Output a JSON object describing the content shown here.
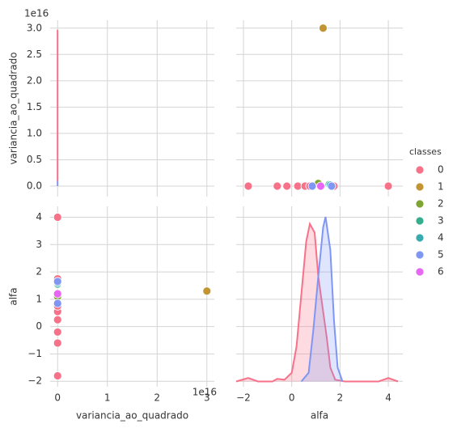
{
  "chart_data": [
    {
      "type": "line",
      "ylabel": "variancia_ao_quadrado",
      "y_offset": "1e16",
      "xlim": [
        -0.15,
        3.15
      ],
      "xticks": [
        0,
        1,
        2,
        3
      ],
      "ylim": [
        -0.2,
        3.15
      ],
      "yticks": [
        {
          "value": 0,
          "label": "0.0"
        },
        0.5,
        {
          "value": 1,
          "label": "1.0"
        },
        1.5,
        {
          "value": 2,
          "label": "2.0"
        },
        2.5,
        {
          "value": 3,
          "label": "3.0"
        }
      ],
      "grid": true,
      "series": [
        {
          "name": "0",
          "color": "#f77189",
          "x": [
            0,
            0
          ],
          "values": [
            0.1,
            2.97
          ]
        },
        {
          "name": "5",
          "color": "#7f96f4",
          "x": [
            0,
            0
          ],
          "values": [
            0,
            0.1
          ]
        }
      ]
    },
    {
      "type": "scatter",
      "legend_title": "classes",
      "legend": "right",
      "xlim": [
        -2.3,
        4.6
      ],
      "xticks": [
        {
          "value": -2,
          "label": "−2"
        },
        0,
        2,
        4
      ],
      "ylim": [
        -0.2,
        3.15
      ],
      "yticks": [
        {
          "value": 0,
          "label": "0.0"
        },
        0.5,
        {
          "value": 1,
          "label": "1.0"
        },
        1.5,
        {
          "value": 2,
          "label": "2.0"
        },
        2.5,
        {
          "value": 3,
          "label": "3.0"
        }
      ],
      "grid": true,
      "series": [
        {
          "name": "0",
          "color": "#f77189",
          "x": [
            -1.8,
            -0.6,
            -0.2,
            0.25,
            0.55,
            0.75,
            1.75,
            4.0
          ],
          "values": [
            0,
            0,
            0,
            0,
            0,
            0,
            0,
            0
          ]
        },
        {
          "name": "1",
          "color": "#c39532",
          "x": [
            1.3
          ],
          "values": [
            3.0
          ]
        },
        {
          "name": "2",
          "color": "#7ea532",
          "x": [
            1.1
          ],
          "values": [
            0.05
          ]
        },
        {
          "name": "3",
          "color": "#35ae8b",
          "x": [
            1.55
          ],
          "values": [
            0.03
          ]
        },
        {
          "name": "4",
          "color": "#37abb0",
          "x": [
            1.6
          ],
          "values": [
            0.02
          ]
        },
        {
          "name": "5",
          "color": "#7f96f4",
          "x": [
            0.85,
            1.65
          ],
          "values": [
            0,
            0
          ]
        },
        {
          "name": "6",
          "color": "#e866f4",
          "x": [
            1.2
          ],
          "values": [
            0
          ]
        }
      ]
    },
    {
      "type": "scatter",
      "xlabel": "variancia_ao_quadrado",
      "ylabel": "alfa",
      "x_offset": "1e16",
      "xlim": [
        -0.15,
        3.15
      ],
      "xticks": [
        0,
        1,
        2,
        3
      ],
      "ylim": [
        -2.2,
        4.4
      ],
      "yticks": [
        {
          "value": -2,
          "label": "−2"
        },
        {
          "value": -1,
          "label": "−1"
        },
        0,
        1,
        2,
        3,
        4
      ],
      "grid": true,
      "series": [
        {
          "name": "0",
          "color": "#f77189",
          "x": [
            0,
            0,
            0,
            0,
            0,
            0,
            0,
            0
          ],
          "values": [
            -1.8,
            -0.6,
            -0.2,
            0.25,
            0.55,
            0.75,
            1.75,
            4.0
          ]
        },
        {
          "name": "1",
          "color": "#c39532",
          "x": [
            3.0
          ],
          "values": [
            1.3
          ]
        },
        {
          "name": "2",
          "color": "#7ea532",
          "x": [
            0
          ],
          "values": [
            1.1
          ]
        },
        {
          "name": "3",
          "color": "#35ae8b",
          "x": [
            0
          ],
          "values": [
            1.55
          ]
        },
        {
          "name": "4",
          "color": "#37abb0",
          "x": [
            0
          ],
          "values": [
            1.6
          ]
        },
        {
          "name": "5",
          "color": "#7f96f4",
          "x": [
            0,
            0
          ],
          "values": [
            0.85,
            1.65
          ]
        },
        {
          "name": "6",
          "color": "#e866f4",
          "x": [
            0
          ],
          "values": [
            1.2
          ]
        }
      ]
    },
    {
      "type": "kde",
      "xlabel": "alfa",
      "xlim": [
        -2.3,
        4.6
      ],
      "xticks": [
        {
          "value": -2,
          "label": "−2"
        },
        0,
        2,
        4
      ],
      "ylim": [
        -2.2,
        4.4
      ],
      "yticks": [
        {
          "value": -2,
          "label": "−2"
        },
        {
          "value": -1,
          "label": "−1"
        },
        0,
        1,
        2,
        3,
        4
      ],
      "density_lim": [
        -0.03,
        1.0
      ],
      "grid": true,
      "series": [
        {
          "name": "0",
          "color": "#f77189",
          "x": [
            -2.3,
            -1.8,
            -1.4,
            -0.8,
            -0.6,
            -0.3,
            0,
            0.2,
            0.4,
            0.6,
            0.75,
            0.95,
            1.1,
            1.25,
            1.45,
            1.6,
            1.8,
            2.2,
            3.6,
            4.0,
            4.4
          ],
          "values": [
            0,
            0.02,
            0,
            0,
            0.015,
            0.01,
            0.05,
            0.2,
            0.5,
            0.8,
            0.9,
            0.85,
            0.6,
            0.45,
            0.25,
            0.08,
            0.01,
            0,
            0,
            0.02,
            0
          ]
        },
        {
          "name": "5",
          "color": "#7f96f4",
          "x": [
            0.4,
            0.7,
            0.9,
            1.1,
            1.3,
            1.4,
            1.6,
            1.75,
            1.9,
            2.1
          ],
          "values": [
            0,
            0.05,
            0.3,
            0.6,
            0.88,
            0.94,
            0.75,
            0.35,
            0.08,
            0
          ]
        }
      ]
    }
  ]
}
